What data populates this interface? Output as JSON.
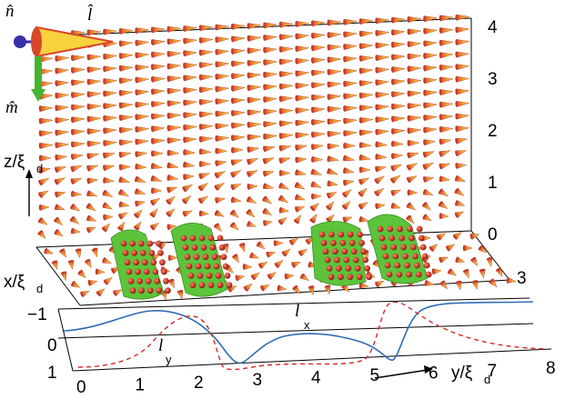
{
  "figure": {
    "vector_labels": {
      "n": "n̂",
      "l": "l̂",
      "m": "m̂"
    },
    "axes": {
      "z_label": "z/ξ",
      "z_sub": "d",
      "x_label": "x/ξ",
      "x_sub": "d",
      "y_label": "y/ξ",
      "y_sub": "d",
      "z_ticks": [
        "0",
        "1",
        "2",
        "3",
        "4"
      ],
      "x_ticks": [
        "−1",
        "0",
        "1"
      ],
      "x_ticks_right": [
        "3"
      ],
      "y_ticks": [
        "0",
        "1",
        "2",
        "3",
        "4",
        "5",
        "6",
        "7",
        "8"
      ]
    },
    "curve_labels": {
      "lx": "l",
      "lx_sub": "x",
      "ly": "l",
      "ly_sub": "y"
    },
    "colors": {
      "cone_body": "#f2a93a",
      "cone_edge": "#c0392b",
      "cone_tip": "#f7d23e",
      "domain_fill": "#5cc43a",
      "dot": "#c0392b",
      "curve_lx": "#2f6db5",
      "curve_ly": "#d62728",
      "icon_n": "#3a2fa8",
      "icon_m": "#44b530"
    }
  }
}
